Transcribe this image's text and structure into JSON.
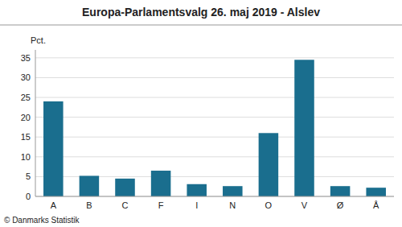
{
  "chart_data": {
    "type": "bar",
    "title": "Europa-Parlamentsvalg 26. maj 2019 - Alslev",
    "categories": [
      "A",
      "B",
      "C",
      "F",
      "I",
      "N",
      "O",
      "V",
      "Ø",
      "Å"
    ],
    "values": [
      24.0,
      5.2,
      4.5,
      6.5,
      3.1,
      2.6,
      16.0,
      34.5,
      2.6,
      2.2
    ],
    "color": "#1a6e8e",
    "ylabel": "Pct.",
    "footer": "© Danmarks Statistik",
    "ylim": [
      0,
      37
    ],
    "yticks": [
      0,
      5,
      10,
      15,
      20,
      25,
      30,
      35
    ],
    "grid": true
  }
}
